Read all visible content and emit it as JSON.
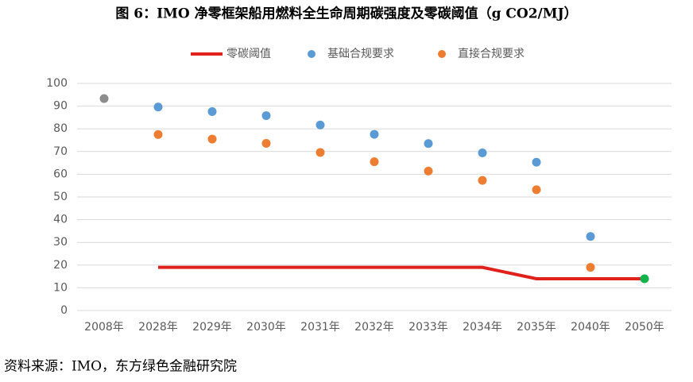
{
  "chart_data": {
    "type": "combo",
    "title": "图 6：IMO 净零框架船用燃料全生命周期碳强度及零碳阈值（g CO2/MJ）",
    "source": "资料来源：IMO，东方绿色金融研究院",
    "categories": [
      "2008年",
      "2028年",
      "2029年",
      "2030年",
      "2031年",
      "2032年",
      "2033年",
      "2034年",
      "2035年",
      "2040年",
      "2050年"
    ],
    "series": [
      {
        "name": "零碳阈值",
        "type": "line",
        "color": "#e0201b",
        "values": [
          null,
          19,
          19,
          19,
          19,
          19,
          19,
          19,
          14,
          14,
          14
        ]
      },
      {
        "name": "基础合规要求",
        "type": "scatter",
        "color": "#5b9bd5",
        "values": [
          null,
          89.6,
          87.6,
          85.8,
          81.7,
          77.6,
          73.5,
          69.4,
          65.3,
          32.6,
          null
        ]
      },
      {
        "name": "直接合规要求",
        "type": "scatter",
        "color": "#ed7d31",
        "values": [
          null,
          77.5,
          75.5,
          73.6,
          69.6,
          65.5,
          61.4,
          57.3,
          53.2,
          19.0,
          null
        ]
      },
      {
        "type": "scatter",
        "color": "#8c8c8c",
        "values": [
          93.3,
          null,
          null,
          null,
          null,
          null,
          null,
          null,
          null,
          null,
          null
        ]
      },
      {
        "type": "scatter",
        "color": "#13b24b",
        "values": [
          null,
          null,
          null,
          null,
          null,
          null,
          null,
          null,
          null,
          null,
          14
        ]
      }
    ],
    "ylim": [
      0,
      100
    ],
    "yticks": [
      0,
      10,
      20,
      30,
      40,
      50,
      60,
      70,
      80,
      90,
      100
    ],
    "grid": true
  }
}
